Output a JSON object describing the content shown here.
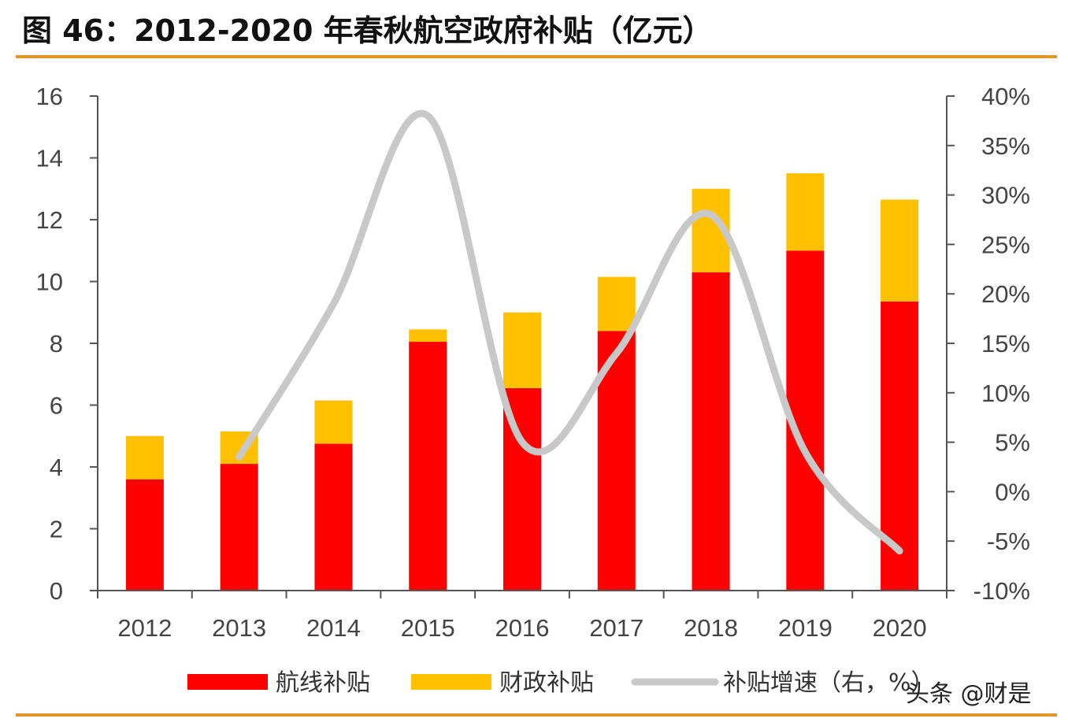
{
  "title": "图 46：2012-2020 年春秋航空政府补贴（亿元）",
  "colors": {
    "rule": "#E0962A",
    "route": "#FF0000",
    "fiscal": "#FFC000",
    "growth": "#C8C8C8",
    "axis": "#555555"
  },
  "watermark": "头条 @财是",
  "chart_data": {
    "type": "bar",
    "stacked": true,
    "categories": [
      "2012",
      "2013",
      "2014",
      "2015",
      "2016",
      "2017",
      "2018",
      "2019",
      "2020"
    ],
    "series": [
      {
        "name": "航线补贴",
        "type": "bar",
        "axis": "left",
        "values": [
          3.6,
          4.1,
          4.75,
          8.05,
          6.55,
          8.4,
          10.3,
          11.0,
          9.35
        ]
      },
      {
        "name": "财政补贴",
        "type": "bar",
        "axis": "left",
        "values": [
          1.4,
          1.05,
          1.4,
          0.4,
          2.45,
          1.75,
          2.7,
          2.5,
          3.3
        ]
      },
      {
        "name": "补贴增速（右，%）",
        "type": "line",
        "axis": "right",
        "smooth": true,
        "x": [
          "2013",
          "2014",
          "2015",
          "2016",
          "2017",
          "2018",
          "2019",
          "2020"
        ],
        "values": [
          3.5,
          19,
          38,
          5,
          14,
          28,
          4,
          -6
        ]
      }
    ],
    "ylim": [
      0,
      16
    ],
    "yticks": [
      "0",
      "2",
      "4",
      "6",
      "8",
      "10",
      "12",
      "14",
      "16"
    ],
    "y2lim": [
      -10,
      40
    ],
    "y2ticks": [
      "-10%",
      "-5%",
      "0%",
      "5%",
      "10%",
      "15%",
      "20%",
      "25%",
      "30%",
      "35%",
      "40%"
    ],
    "legend": {
      "position": "bottom",
      "labels": [
        "航线补贴",
        "财政补贴",
        "补贴增速（右，%）"
      ]
    }
  }
}
